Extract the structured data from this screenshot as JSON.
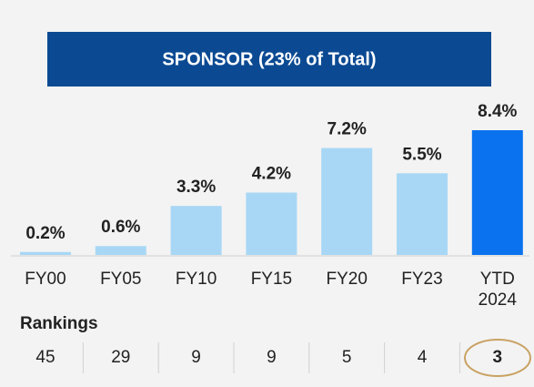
{
  "chart_data": {
    "type": "bar",
    "title": "SPONSOR (23% of Total)",
    "categories": [
      "FY00",
      "FY05",
      "FY10",
      "FY15",
      "FY20",
      "FY23",
      "YTD 2024"
    ],
    "values": [
      0.2,
      0.6,
      3.3,
      4.2,
      7.2,
      5.5,
      8.4
    ],
    "value_labels": [
      "0.2%",
      "0.6%",
      "3.3%",
      "4.2%",
      "7.2%",
      "5.5%",
      "8.4%"
    ],
    "colors": [
      "#a8d7f5",
      "#a8d7f5",
      "#a8d7f5",
      "#a8d7f5",
      "#a8d7f5",
      "#a8d7f5",
      "#0a72ee"
    ],
    "rankings": {
      "label": "Rankings",
      "values": [
        45,
        29,
        9,
        9,
        5,
        4,
        3
      ]
    }
  }
}
